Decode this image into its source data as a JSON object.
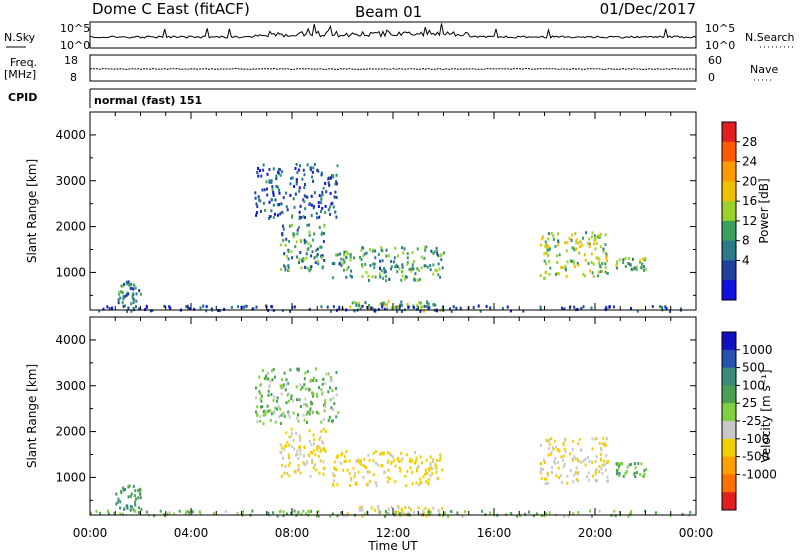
{
  "header": {
    "station": "Dome C East (fitACF)",
    "beam": "Beam 01",
    "date": "01/Dec/2017"
  },
  "strips": {
    "nsky_label": "N.Sky",
    "nsearch_label": "N.Search",
    "nsky_ticks": [
      "10^5",
      "10^0"
    ],
    "nsearch_ticks": [
      "10^5",
      "10^0"
    ],
    "freq_label": "Freq.",
    "freq_unit": "[MHz]",
    "freq_ticks": [
      "18",
      "8"
    ],
    "nave_label": "Nave",
    "nave_ticks": [
      "60",
      "0"
    ],
    "cpid_label": "CPID",
    "cpid_value": "normal (fast) 151"
  },
  "axes": {
    "ylabel": "Slant Range [km]",
    "xlabel": "Time UT",
    "yticks": [
      "4000",
      "3000",
      "2000",
      "1000"
    ],
    "xticks": [
      "00:00",
      "04:00",
      "08:00",
      "12:00",
      "16:00",
      "20:00",
      "00:00"
    ]
  },
  "colorbars": {
    "power": {
      "label": "Power [dB]",
      "ticks": [
        "28",
        "24",
        "20",
        "16",
        "12",
        "8",
        "4"
      ],
      "colors": [
        "#e02020",
        "#ff5a00",
        "#ff9a00",
        "#f0c000",
        "#9ad22a",
        "#3aa060",
        "#2a7a8a",
        "#2040a0",
        "#1010e0"
      ]
    },
    "velocity": {
      "label": "Velocity [m s⁻¹]",
      "ticks": [
        "1000",
        "500",
        "100",
        "25",
        "-25",
        "-100",
        "-500",
        "-1000"
      ],
      "colors": [
        "#1010c0",
        "#2850b0",
        "#3a8a7a",
        "#4aa050",
        "#80d040",
        "#c8c8c8",
        "#f0d000",
        "#ffa000",
        "#ff7000",
        "#e02020"
      ]
    }
  },
  "chart_data": {
    "type": "heatmap",
    "title": "Dome C East (fitACF)",
    "x_range_hours": [
      0,
      24
    ],
    "y_range_km": [
      180,
      4500
    ],
    "power_colorbar_range_db": [
      0,
      30
    ],
    "velocity_colorbar_range_ms": [
      -1000,
      1000
    ],
    "echo_regions": [
      {
        "t_start": 1.0,
        "t_end": 2.0,
        "r_start": 300,
        "r_end": 850,
        "power_db": 9,
        "velocity_ms": 80
      },
      {
        "t_start": 6.5,
        "t_end": 9.8,
        "r_start": 2200,
        "r_end": 3400,
        "power_db": 6,
        "velocity_ms": 10
      },
      {
        "t_start": 7.5,
        "t_end": 9.3,
        "r_start": 1050,
        "r_end": 2100,
        "power_db": 10,
        "velocity_ms": -110
      },
      {
        "t_start": 9.5,
        "t_end": 14.0,
        "r_start": 850,
        "r_end": 1600,
        "power_db": 11,
        "velocity_ms": -140
      },
      {
        "t_start": 10.0,
        "t_end": 14.0,
        "r_start": 180,
        "r_end": 400,
        "power_db": 14,
        "velocity_ms": -90
      },
      {
        "t_start": 17.8,
        "t_end": 20.5,
        "r_start": 900,
        "r_end": 1900,
        "power_db": 14,
        "velocity_ms": -100
      },
      {
        "t_start": 20.8,
        "t_end": 22.0,
        "r_start": 1050,
        "r_end": 1350,
        "power_db": 12,
        "velocity_ms": 50
      },
      {
        "t_start": 0.0,
        "t_end": 24.0,
        "r_start": 180,
        "r_end": 300,
        "power_db": 5,
        "velocity_ms": 20
      }
    ]
  }
}
